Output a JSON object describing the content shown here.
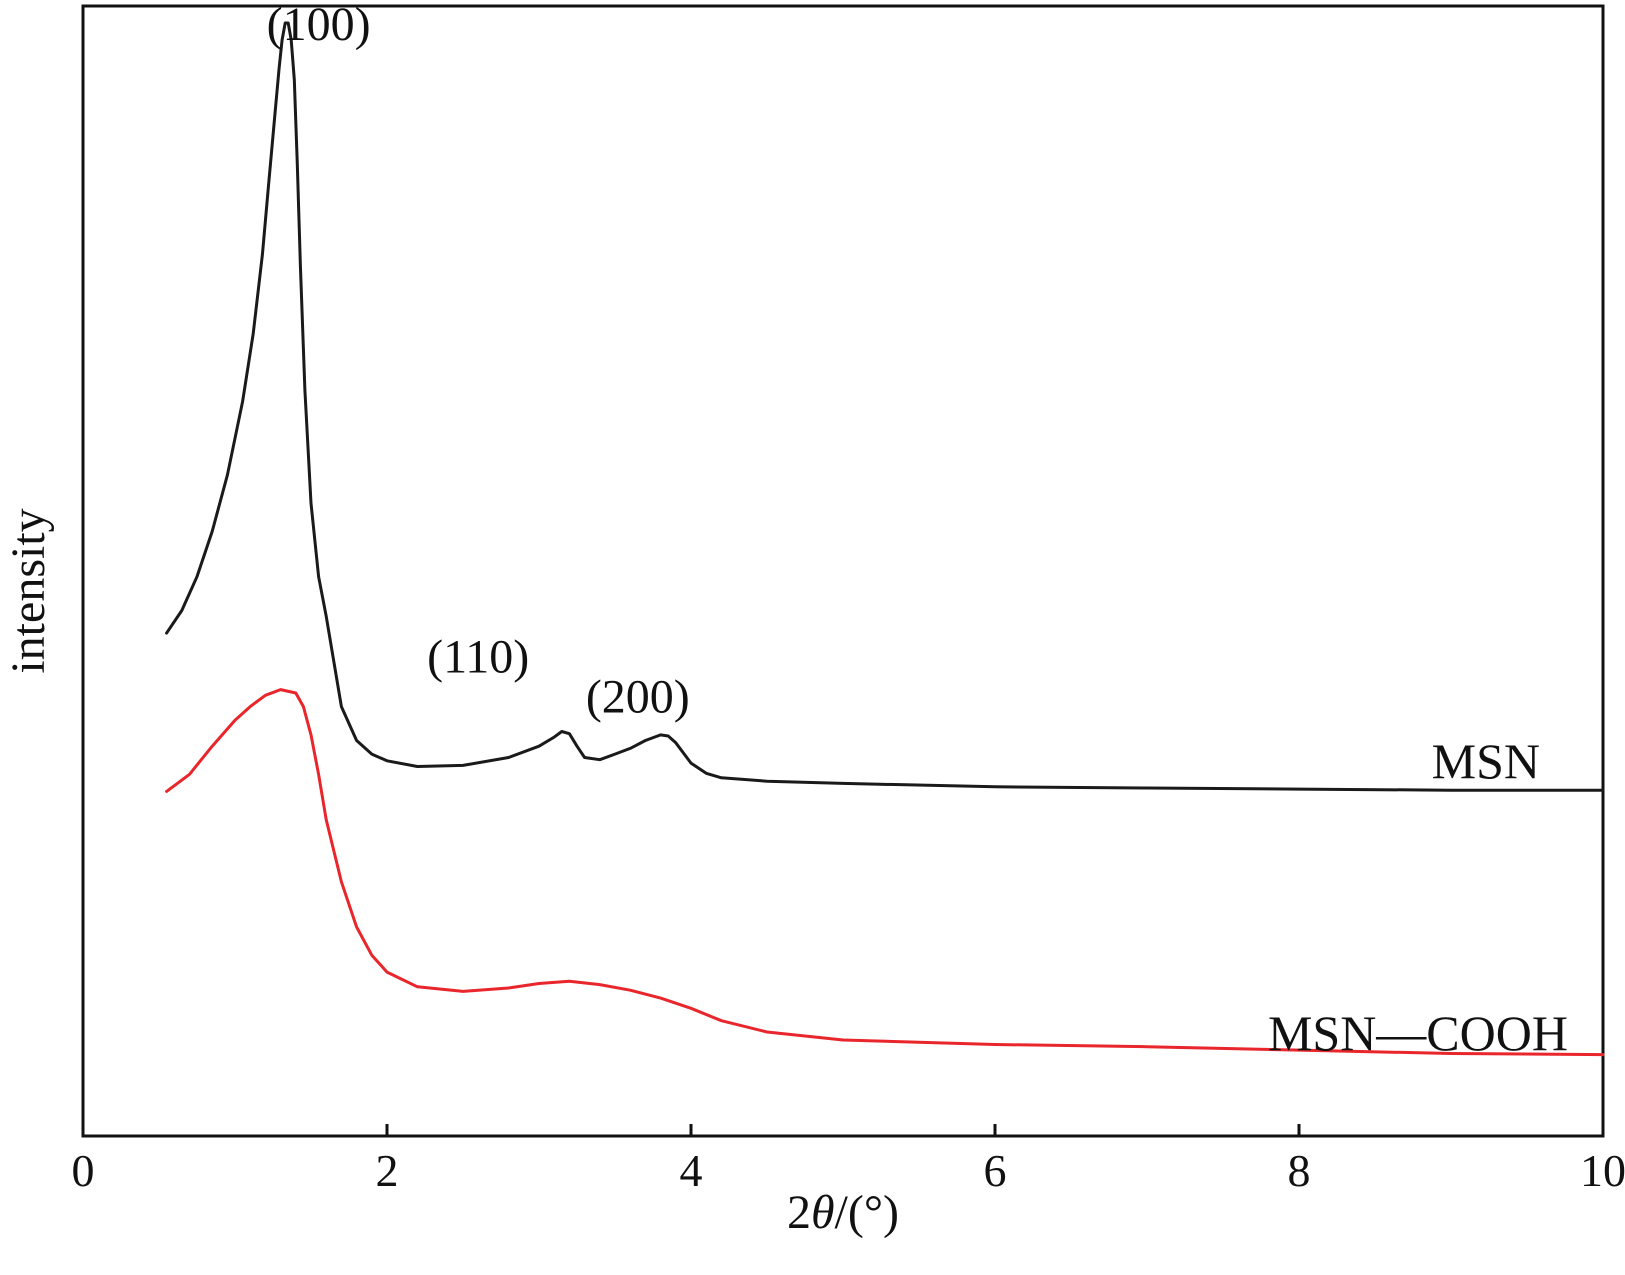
{
  "chart_data": {
    "type": "line",
    "title": "",
    "xlabel_prefix": "2",
    "xlabel_symbol": "θ",
    "xlabel_suffix": "/(°)",
    "ylabel": "intensity",
    "xlim": [
      0,
      10
    ],
    "ylim": [
      0,
      100
    ],
    "xticks": [
      0,
      2,
      4,
      6,
      8,
      10
    ],
    "xtick_labels": [
      "0",
      "2",
      "4",
      "6",
      "8",
      "10"
    ],
    "yticks_shown": false,
    "grid": false,
    "series": [
      {
        "name": "MSN",
        "label": "MSN",
        "color": "#1a1a1a",
        "x": [
          0.55,
          0.65,
          0.75,
          0.85,
          0.95,
          1.05,
          1.12,
          1.18,
          1.22,
          1.26,
          1.29,
          1.31,
          1.33,
          1.35,
          1.37,
          1.39,
          1.41,
          1.43,
          1.46,
          1.5,
          1.55,
          1.6,
          1.7,
          1.8,
          1.9,
          2.0,
          2.2,
          2.5,
          2.8,
          3.0,
          3.1,
          3.15,
          3.2,
          3.25,
          3.3,
          3.4,
          3.5,
          3.6,
          3.7,
          3.8,
          3.85,
          3.9,
          4.0,
          4.1,
          4.2,
          4.5,
          5.0,
          6.0,
          7.0,
          8.0,
          9.0,
          10.0
        ],
        "y": [
          44.5,
          46.5,
          49.5,
          53.5,
          58.5,
          65,
          71,
          78,
          84,
          90,
          94.5,
          97,
          98.5,
          98.5,
          97,
          93.5,
          86,
          77,
          66,
          56,
          49.5,
          46,
          38,
          35,
          33.8,
          33.2,
          32.7,
          32.8,
          33.5,
          34.5,
          35.3,
          35.8,
          35.6,
          34.5,
          33.5,
          33.3,
          33.8,
          34.3,
          35,
          35.5,
          35.4,
          34.8,
          33,
          32.1,
          31.7,
          31.4,
          31.2,
          30.9,
          30.8,
          30.7,
          30.6,
          30.6
        ]
      },
      {
        "name": "MSN—COOH",
        "label": "MSN—COOH",
        "color": "#e8262b",
        "x": [
          0.55,
          0.7,
          0.85,
          1.0,
          1.1,
          1.2,
          1.3,
          1.4,
          1.45,
          1.5,
          1.55,
          1.6,
          1.7,
          1.8,
          1.9,
          2.0,
          2.2,
          2.5,
          2.8,
          3.0,
          3.2,
          3.4,
          3.6,
          3.8,
          4.0,
          4.2,
          4.5,
          5.0,
          6.0,
          7.0,
          8.0,
          9.0,
          10.0
        ],
        "y": [
          30.5,
          32,
          34.5,
          36.8,
          38,
          39,
          39.5,
          39.2,
          38,
          35.5,
          32,
          28,
          22.5,
          18.5,
          16,
          14.5,
          13.2,
          12.8,
          13.1,
          13.5,
          13.7,
          13.4,
          12.9,
          12.2,
          11.3,
          10.2,
          9.2,
          8.5,
          8.1,
          7.9,
          7.6,
          7.3,
          7.2
        ]
      }
    ],
    "annotations": [
      {
        "text": "(100)",
        "x": 1.55,
        "y": 97
      },
      {
        "text": "(110)",
        "x": 2.6,
        "y": 41
      },
      {
        "text": "(200)",
        "x": 3.65,
        "y": 37.5
      }
    ]
  }
}
